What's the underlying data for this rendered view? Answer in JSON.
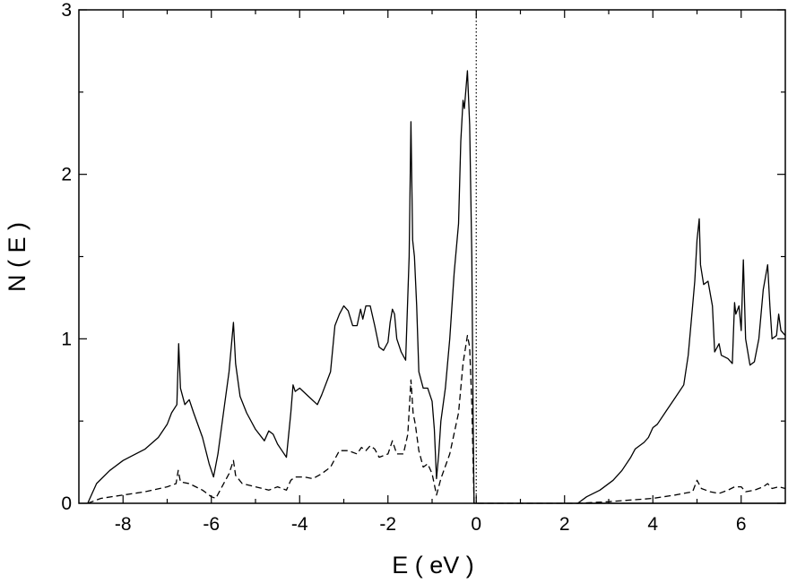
{
  "chart_data": {
    "type": "line",
    "title": "",
    "xlabel": "E ( eV )",
    "ylabel": "N ( E )",
    "xlim": [
      -9,
      7
    ],
    "ylim": [
      0,
      3
    ],
    "x_ticks": [
      -8,
      -6,
      -4,
      -2,
      0,
      2,
      4,
      6
    ],
    "x_tick_labels": [
      "-8",
      "-6",
      "-4",
      "-2",
      "0",
      "2",
      "4",
      "6"
    ],
    "y_ticks": [
      0,
      1,
      2,
      3
    ],
    "y_tick_labels": [
      "0",
      "1",
      "2",
      "3"
    ],
    "grid": false,
    "legend": "none",
    "reference_line": {
      "x": 0,
      "style": "dotted"
    },
    "series": [
      {
        "style": "solid",
        "points": [
          [
            -8.8,
            0
          ],
          [
            -8.6,
            0.12
          ],
          [
            -8.3,
            0.2
          ],
          [
            -8.0,
            0.26
          ],
          [
            -7.5,
            0.33
          ],
          [
            -7.2,
            0.4
          ],
          [
            -7.0,
            0.48
          ],
          [
            -6.9,
            0.55
          ],
          [
            -6.78,
            0.6
          ],
          [
            -6.74,
            0.97
          ],
          [
            -6.7,
            0.7
          ],
          [
            -6.6,
            0.6
          ],
          [
            -6.5,
            0.63
          ],
          [
            -6.4,
            0.55
          ],
          [
            -6.2,
            0.4
          ],
          [
            -6.05,
            0.24
          ],
          [
            -5.95,
            0.16
          ],
          [
            -5.85,
            0.3
          ],
          [
            -5.7,
            0.6
          ],
          [
            -5.6,
            0.8
          ],
          [
            -5.5,
            1.1
          ],
          [
            -5.45,
            0.85
          ],
          [
            -5.35,
            0.65
          ],
          [
            -5.2,
            0.55
          ],
          [
            -5.0,
            0.45
          ],
          [
            -4.8,
            0.38
          ],
          [
            -4.7,
            0.44
          ],
          [
            -4.6,
            0.42
          ],
          [
            -4.5,
            0.36
          ],
          [
            -4.4,
            0.32
          ],
          [
            -4.3,
            0.28
          ],
          [
            -4.2,
            0.55
          ],
          [
            -4.15,
            0.72
          ],
          [
            -4.1,
            0.68
          ],
          [
            -4.0,
            0.7
          ],
          [
            -3.8,
            0.65
          ],
          [
            -3.6,
            0.6
          ],
          [
            -3.5,
            0.66
          ],
          [
            -3.3,
            0.8
          ],
          [
            -3.2,
            1.08
          ],
          [
            -3.1,
            1.15
          ],
          [
            -3.0,
            1.2
          ],
          [
            -2.9,
            1.17
          ],
          [
            -2.8,
            1.08
          ],
          [
            -2.7,
            1.08
          ],
          [
            -2.62,
            1.18
          ],
          [
            -2.57,
            1.12
          ],
          [
            -2.5,
            1.2
          ],
          [
            -2.4,
            1.2
          ],
          [
            -2.3,
            1.08
          ],
          [
            -2.2,
            0.95
          ],
          [
            -2.1,
            0.93
          ],
          [
            -2.0,
            0.98
          ],
          [
            -1.95,
            1.1
          ],
          [
            -1.9,
            1.18
          ],
          [
            -1.85,
            1.15
          ],
          [
            -1.8,
            1.0
          ],
          [
            -1.7,
            0.92
          ],
          [
            -1.6,
            0.87
          ],
          [
            -1.52,
            1.5
          ],
          [
            -1.48,
            2.32
          ],
          [
            -1.44,
            1.6
          ],
          [
            -1.4,
            1.5
          ],
          [
            -1.35,
            1.2
          ],
          [
            -1.3,
            0.8
          ],
          [
            -1.2,
            0.7
          ],
          [
            -1.1,
            0.7
          ],
          [
            -1.0,
            0.62
          ],
          [
            -0.95,
            0.45
          ],
          [
            -0.9,
            0.15
          ],
          [
            -0.85,
            0.3
          ],
          [
            -0.8,
            0.5
          ],
          [
            -0.7,
            0.7
          ],
          [
            -0.6,
            1.0
          ],
          [
            -0.5,
            1.4
          ],
          [
            -0.4,
            1.7
          ],
          [
            -0.35,
            2.2
          ],
          [
            -0.3,
            2.45
          ],
          [
            -0.27,
            2.4
          ],
          [
            -0.2,
            2.63
          ],
          [
            -0.15,
            2.3
          ],
          [
            -0.1,
            1.5
          ],
          [
            -0.07,
            0.5
          ],
          [
            -0.05,
            0
          ],
          [
            7.0,
            0
          ]
        ]
      },
      {
        "style": "solid",
        "points": [
          [
            2.3,
            0
          ],
          [
            2.5,
            0.04
          ],
          [
            2.8,
            0.08
          ],
          [
            3.1,
            0.14
          ],
          [
            3.3,
            0.2
          ],
          [
            3.5,
            0.28
          ],
          [
            3.6,
            0.33
          ],
          [
            3.8,
            0.37
          ],
          [
            3.9,
            0.4
          ],
          [
            4.0,
            0.46
          ],
          [
            4.1,
            0.48
          ],
          [
            4.3,
            0.56
          ],
          [
            4.5,
            0.64
          ],
          [
            4.7,
            0.72
          ],
          [
            4.8,
            0.9
          ],
          [
            4.9,
            1.2
          ],
          [
            4.95,
            1.35
          ],
          [
            5.0,
            1.6
          ],
          [
            5.05,
            1.73
          ],
          [
            5.08,
            1.45
          ],
          [
            5.15,
            1.33
          ],
          [
            5.25,
            1.35
          ],
          [
            5.35,
            1.2
          ],
          [
            5.4,
            0.92
          ],
          [
            5.5,
            0.97
          ],
          [
            5.55,
            0.9
          ],
          [
            5.7,
            0.88
          ],
          [
            5.8,
            0.85
          ],
          [
            5.85,
            1.22
          ],
          [
            5.88,
            1.15
          ],
          [
            5.95,
            1.2
          ],
          [
            6.0,
            1.05
          ],
          [
            6.05,
            1.48
          ],
          [
            6.1,
            1.0
          ],
          [
            6.2,
            0.84
          ],
          [
            6.3,
            0.86
          ],
          [
            6.4,
            1.0
          ],
          [
            6.5,
            1.3
          ],
          [
            6.6,
            1.45
          ],
          [
            6.65,
            1.2
          ],
          [
            6.7,
            1.0
          ],
          [
            6.8,
            1.02
          ],
          [
            6.85,
            1.15
          ],
          [
            6.9,
            1.05
          ],
          [
            7.0,
            1.02
          ]
        ]
      },
      {
        "style": "dashed",
        "points": [
          [
            -8.8,
            0
          ],
          [
            -8.5,
            0.03
          ],
          [
            -8.0,
            0.05
          ],
          [
            -7.5,
            0.07
          ],
          [
            -7.0,
            0.1
          ],
          [
            -6.8,
            0.12
          ],
          [
            -6.75,
            0.2
          ],
          [
            -6.7,
            0.13
          ],
          [
            -6.5,
            0.12
          ],
          [
            -6.2,
            0.08
          ],
          [
            -6.0,
            0.04
          ],
          [
            -5.9,
            0.03
          ],
          [
            -5.8,
            0.08
          ],
          [
            -5.6,
            0.18
          ],
          [
            -5.5,
            0.26
          ],
          [
            -5.45,
            0.17
          ],
          [
            -5.3,
            0.12
          ],
          [
            -5.0,
            0.1
          ],
          [
            -4.7,
            0.08
          ],
          [
            -4.5,
            0.1
          ],
          [
            -4.3,
            0.08
          ],
          [
            -4.2,
            0.14
          ],
          [
            -4.1,
            0.16
          ],
          [
            -3.9,
            0.16
          ],
          [
            -3.7,
            0.15
          ],
          [
            -3.5,
            0.18
          ],
          [
            -3.3,
            0.22
          ],
          [
            -3.1,
            0.32
          ],
          [
            -2.9,
            0.32
          ],
          [
            -2.7,
            0.3
          ],
          [
            -2.6,
            0.34
          ],
          [
            -2.5,
            0.32
          ],
          [
            -2.4,
            0.35
          ],
          [
            -2.3,
            0.33
          ],
          [
            -2.2,
            0.28
          ],
          [
            -2.0,
            0.3
          ],
          [
            -1.9,
            0.38
          ],
          [
            -1.8,
            0.3
          ],
          [
            -1.65,
            0.3
          ],
          [
            -1.55,
            0.42
          ],
          [
            -1.48,
            0.75
          ],
          [
            -1.43,
            0.55
          ],
          [
            -1.38,
            0.48
          ],
          [
            -1.3,
            0.32
          ],
          [
            -1.2,
            0.22
          ],
          [
            -1.1,
            0.24
          ],
          [
            -1.0,
            0.18
          ],
          [
            -0.9,
            0.05
          ],
          [
            -0.8,
            0.15
          ],
          [
            -0.6,
            0.3
          ],
          [
            -0.4,
            0.55
          ],
          [
            -0.3,
            0.85
          ],
          [
            -0.2,
            1.02
          ],
          [
            -0.15,
            0.95
          ],
          [
            -0.1,
            0.6
          ],
          [
            -0.05,
            0
          ],
          [
            2.3,
            0
          ],
          [
            3.0,
            0.01
          ],
          [
            4.0,
            0.03
          ],
          [
            4.5,
            0.05
          ],
          [
            4.9,
            0.07
          ],
          [
            5.0,
            0.14
          ],
          [
            5.1,
            0.09
          ],
          [
            5.3,
            0.07
          ],
          [
            5.5,
            0.06
          ],
          [
            5.7,
            0.08
          ],
          [
            5.85,
            0.1
          ],
          [
            6.0,
            0.1
          ],
          [
            6.1,
            0.07
          ],
          [
            6.3,
            0.08
          ],
          [
            6.5,
            0.1
          ],
          [
            6.6,
            0.12
          ],
          [
            6.7,
            0.09
          ],
          [
            6.85,
            0.1
          ],
          [
            7.0,
            0.09
          ]
        ]
      }
    ]
  }
}
